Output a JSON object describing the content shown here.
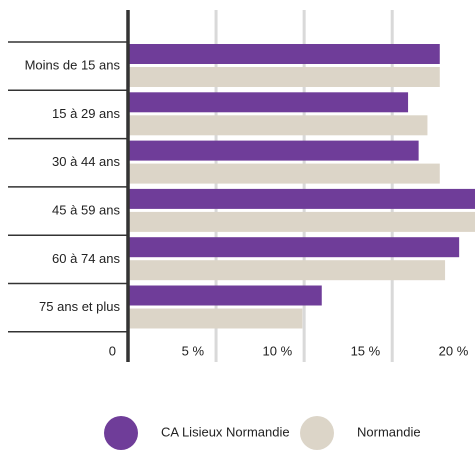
{
  "chart_data": {
    "type": "barh",
    "categories": [
      "Moins de 15 ans",
      "15 à 29 ans",
      "30 à 44 ans",
      "45 à 59 ans",
      "60 à 74 ans",
      "75 ans et plus"
    ],
    "series": [
      {
        "name": "CA Lisieux Normandie",
        "color": "#6f3d99",
        "values": [
          17.7,
          15.9,
          16.5,
          20.0,
          18.8,
          11.0
        ]
      },
      {
        "name": "Normandie",
        "color": "#dcd5c8",
        "values": [
          17.7,
          17.0,
          17.7,
          20.0,
          18.0,
          9.9
        ]
      }
    ],
    "xlim": [
      0,
      19.7
    ],
    "xticks": [
      0,
      {
        "value": 5,
        "label": "5 %"
      },
      {
        "value": 10,
        "label": "10 %"
      },
      {
        "value": 15,
        "label": "15 %"
      },
      {
        "value": 20,
        "label": "20 %"
      }
    ],
    "grid": true,
    "legend": "bottom"
  }
}
